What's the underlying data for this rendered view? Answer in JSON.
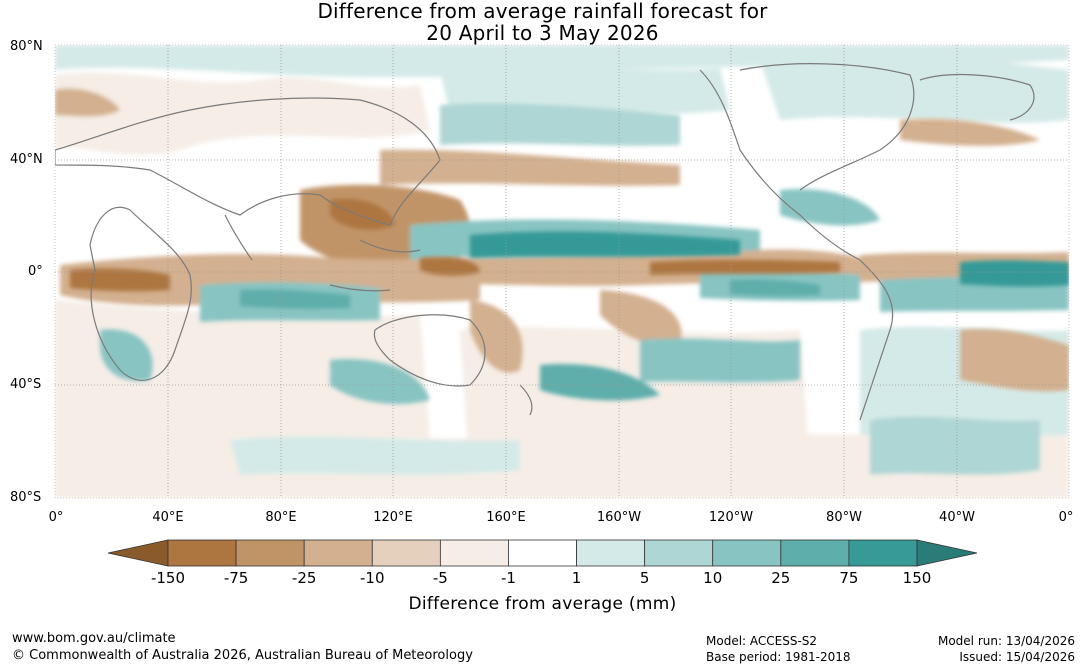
{
  "title": {
    "line1": "Difference from average rainfall forecast for",
    "line2": "20 April to 3 May 2026"
  },
  "map": {
    "lat_labels": [
      "80°N",
      "40°N",
      "0°",
      "40°S",
      "80°S"
    ],
    "lon_labels": [
      "0°",
      "40°E",
      "80°E",
      "120°E",
      "160°E",
      "160°W",
      "120°W",
      "80°W",
      "40°W",
      "0°"
    ],
    "background": "#ffffff",
    "coastline_color": "#7a7a7a"
  },
  "legend": {
    "title": "Difference from average (mm)",
    "ticks": [
      "-150",
      "-75",
      "-25",
      "-10",
      "-5",
      "-1",
      "1",
      "5",
      "10",
      "25",
      "75",
      "150"
    ],
    "colors": [
      "#8b5a2b",
      "#ad7641",
      "#c19468",
      "#d3b08f",
      "#e5d0bd",
      "#f5ede6",
      "#ffffff",
      "#d4eae8",
      "#aed6d4",
      "#88c4c2",
      "#5eaeab",
      "#369a97",
      "#2a7c79"
    ]
  },
  "footer": {
    "website": "www.bom.gov.au/climate",
    "copyright": "© Commonwealth of Australia 2026, Australian Bureau of Meteorology",
    "model": "Model: ACCESS-S2",
    "base_period": "Base period: 1981-2018",
    "model_run": "Model run: 13/04/2026",
    "issued": "Issued: 15/04/2026"
  }
}
